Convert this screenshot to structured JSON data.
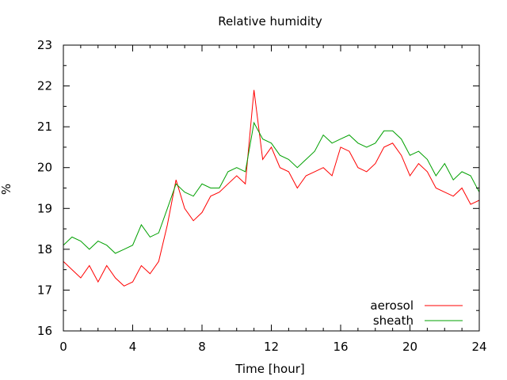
{
  "chart_data": {
    "type": "line",
    "title": "Relative humidity",
    "xlabel": "Time [hour]",
    "ylabel": "%",
    "xlim": [
      0,
      24
    ],
    "ylim": [
      16,
      23
    ],
    "x_ticks": [
      "0",
      "4",
      "8",
      "12",
      "16",
      "20",
      "24"
    ],
    "y_ticks": [
      "16",
      "17",
      "18",
      "19",
      "20",
      "21",
      "22",
      "23"
    ],
    "legend_position": "bottom-right",
    "grid": false,
    "series": [
      {
        "name": "aerosol",
        "color": "#ff0000",
        "x": [
          0,
          0.5,
          1,
          1.5,
          2,
          2.5,
          3,
          3.5,
          4,
          4.5,
          5,
          5.5,
          6,
          6.5,
          7,
          7.5,
          8,
          8.5,
          9,
          9.5,
          10,
          10.5,
          11,
          11.5,
          12,
          12.5,
          13,
          13.5,
          14,
          14.5,
          15,
          15.5,
          16,
          16.5,
          17,
          17.5,
          18,
          18.5,
          19,
          19.5,
          20,
          20.5,
          21,
          21.5,
          22,
          22.5,
          23,
          23.5,
          24
        ],
        "y": [
          17.7,
          17.5,
          17.3,
          17.6,
          17.2,
          17.6,
          17.3,
          17.1,
          17.2,
          17.6,
          17.4,
          17.7,
          18.6,
          19.7,
          19.0,
          18.7,
          18.9,
          19.3,
          19.4,
          19.6,
          19.8,
          19.6,
          21.9,
          20.2,
          20.5,
          20.0,
          19.9,
          19.5,
          19.8,
          19.9,
          20.0,
          19.8,
          20.5,
          20.4,
          20.0,
          19.9,
          20.1,
          20.5,
          20.6,
          20.3,
          19.8,
          20.1,
          19.9,
          19.5,
          19.4,
          19.3,
          19.5,
          19.1,
          19.2
        ]
      },
      {
        "name": "sheath",
        "color": "#00a000",
        "x": [
          0,
          0.5,
          1,
          1.5,
          2,
          2.5,
          3,
          3.5,
          4,
          4.5,
          5,
          5.5,
          6,
          6.5,
          7,
          7.5,
          8,
          8.5,
          9,
          9.5,
          10,
          10.5,
          11,
          11.5,
          12,
          12.5,
          13,
          13.5,
          14,
          14.5,
          15,
          15.5,
          16,
          16.5,
          17,
          17.5,
          18,
          18.5,
          19,
          19.5,
          20,
          20.5,
          21,
          21.5,
          22,
          22.5,
          23,
          23.5,
          24
        ],
        "y": [
          18.1,
          18.3,
          18.2,
          18.0,
          18.2,
          18.1,
          17.9,
          18.0,
          18.1,
          18.6,
          18.3,
          18.4,
          19.0,
          19.6,
          19.4,
          19.3,
          19.6,
          19.5,
          19.5,
          19.9,
          20.0,
          19.9,
          21.1,
          20.7,
          20.6,
          20.3,
          20.2,
          20.0,
          20.2,
          20.4,
          20.8,
          20.6,
          20.7,
          20.8,
          20.6,
          20.5,
          20.6,
          20.9,
          20.9,
          20.7,
          20.3,
          20.4,
          20.2,
          19.8,
          20.1,
          19.7,
          19.9,
          19.8,
          19.4
        ]
      }
    ]
  }
}
